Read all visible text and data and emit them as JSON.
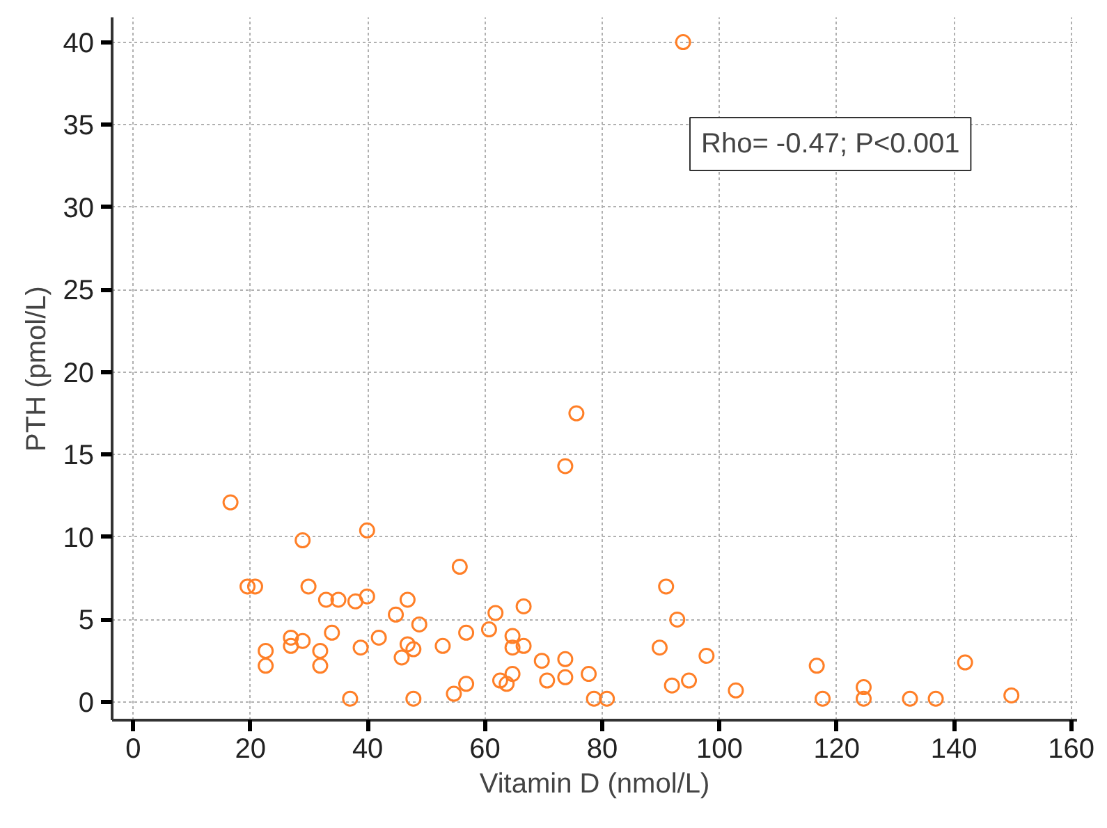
{
  "chart_data": {
    "type": "scatter",
    "xlabel": "Vitamin D (nmol/L)",
    "ylabel": "PTH (pmol/L)",
    "annotations": [
      "Rho= -0.47; P<0.001"
    ],
    "x": [
      16.6,
      19.5,
      20.8,
      22.6,
      22.6,
      26.9,
      26.9,
      28.9,
      28.9,
      29.9,
      31.9,
      31.9,
      32.9,
      33.9,
      35.0,
      37.0,
      37.9,
      38.8,
      39.9,
      39.9,
      41.9,
      44.8,
      45.8,
      46.8,
      46.8,
      47.8,
      47.8,
      48.8,
      52.8,
      54.7,
      55.7,
      56.8,
      56.8,
      60.7,
      61.8,
      62.6,
      63.7,
      64.7,
      64.7,
      64.7,
      66.6,
      66.6,
      69.7,
      70.6,
      73.7,
      73.7,
      73.7,
      75.6,
      77.7,
      78.6,
      80.8,
      89.8,
      90.9,
      91.9,
      92.8,
      93.8,
      94.8,
      97.8,
      102.8,
      116.6,
      117.6,
      124.6,
      124.6,
      132.5,
      136.9,
      141.9,
      149.8
    ],
    "series": [
      {
        "color": "#ff7f27",
        "values": [
          12.1,
          7.0,
          7.0,
          3.1,
          2.2,
          3.9,
          3.4,
          9.8,
          3.7,
          7.0,
          3.1,
          2.2,
          6.2,
          4.2,
          6.2,
          0.2,
          6.1,
          3.3,
          10.4,
          6.4,
          3.9,
          5.3,
          2.7,
          6.2,
          3.5,
          3.2,
          0.2,
          4.7,
          3.4,
          0.5,
          8.2,
          1.1,
          4.2,
          4.4,
          5.4,
          1.3,
          1.1,
          4.0,
          3.3,
          1.7,
          5.8,
          3.4,
          2.5,
          1.3,
          14.3,
          2.6,
          1.5,
          17.5,
          1.7,
          0.2,
          0.2,
          3.3,
          7.0,
          1.0,
          5.0,
          40.0,
          1.3,
          2.8,
          0.7,
          2.2,
          0.2,
          0.9,
          0.2,
          0.2,
          0.2,
          2.4,
          0.4
        ]
      }
    ],
    "xlim": [
      -3.6,
      161
    ],
    "ylim": [
      -1.1,
      41.5
    ],
    "xticks": [
      0,
      20,
      40,
      60,
      80,
      100,
      120,
      140,
      160
    ],
    "yticks": [
      0,
      5,
      10,
      15,
      20,
      25,
      30,
      35,
      40
    ],
    "grid": true,
    "marker": "circle"
  }
}
